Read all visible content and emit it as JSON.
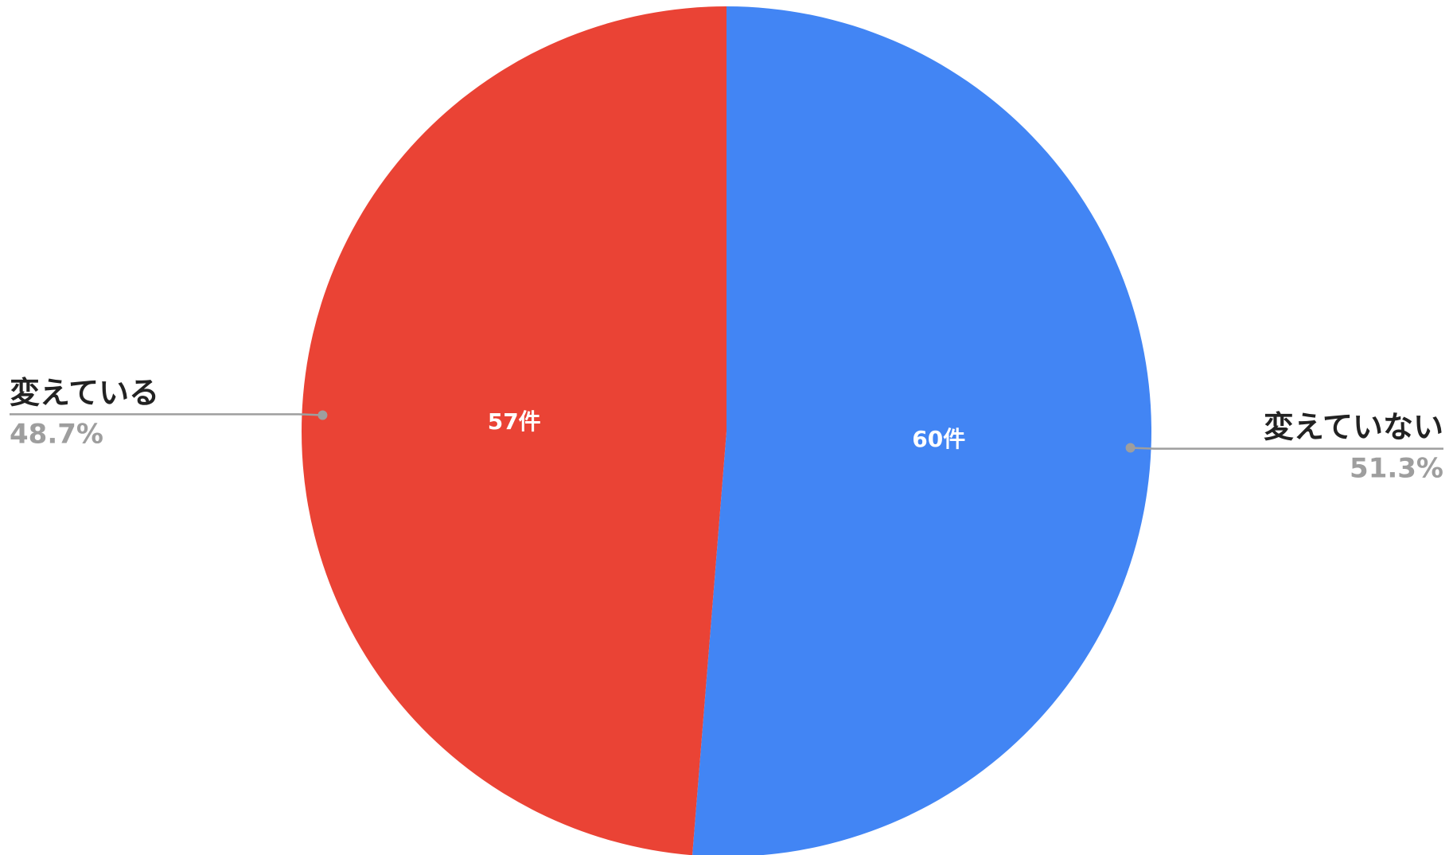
{
  "chart_data": {
    "type": "pie",
    "categories": [
      "変えていない",
      "変えている"
    ],
    "values": [
      60,
      57
    ],
    "value_labels": [
      "60件",
      "57件"
    ],
    "percent_labels": [
      "51.3%",
      "48.7%"
    ],
    "colors": [
      "#4285f4",
      "#ea4335"
    ],
    "leader_line_color": "#9e9e9e",
    "percent_label_color": "#9e9e9e",
    "start_angle": "12 o'clock, clockwise",
    "legend": "none (slice labels outside with leader lines)",
    "title": ""
  }
}
